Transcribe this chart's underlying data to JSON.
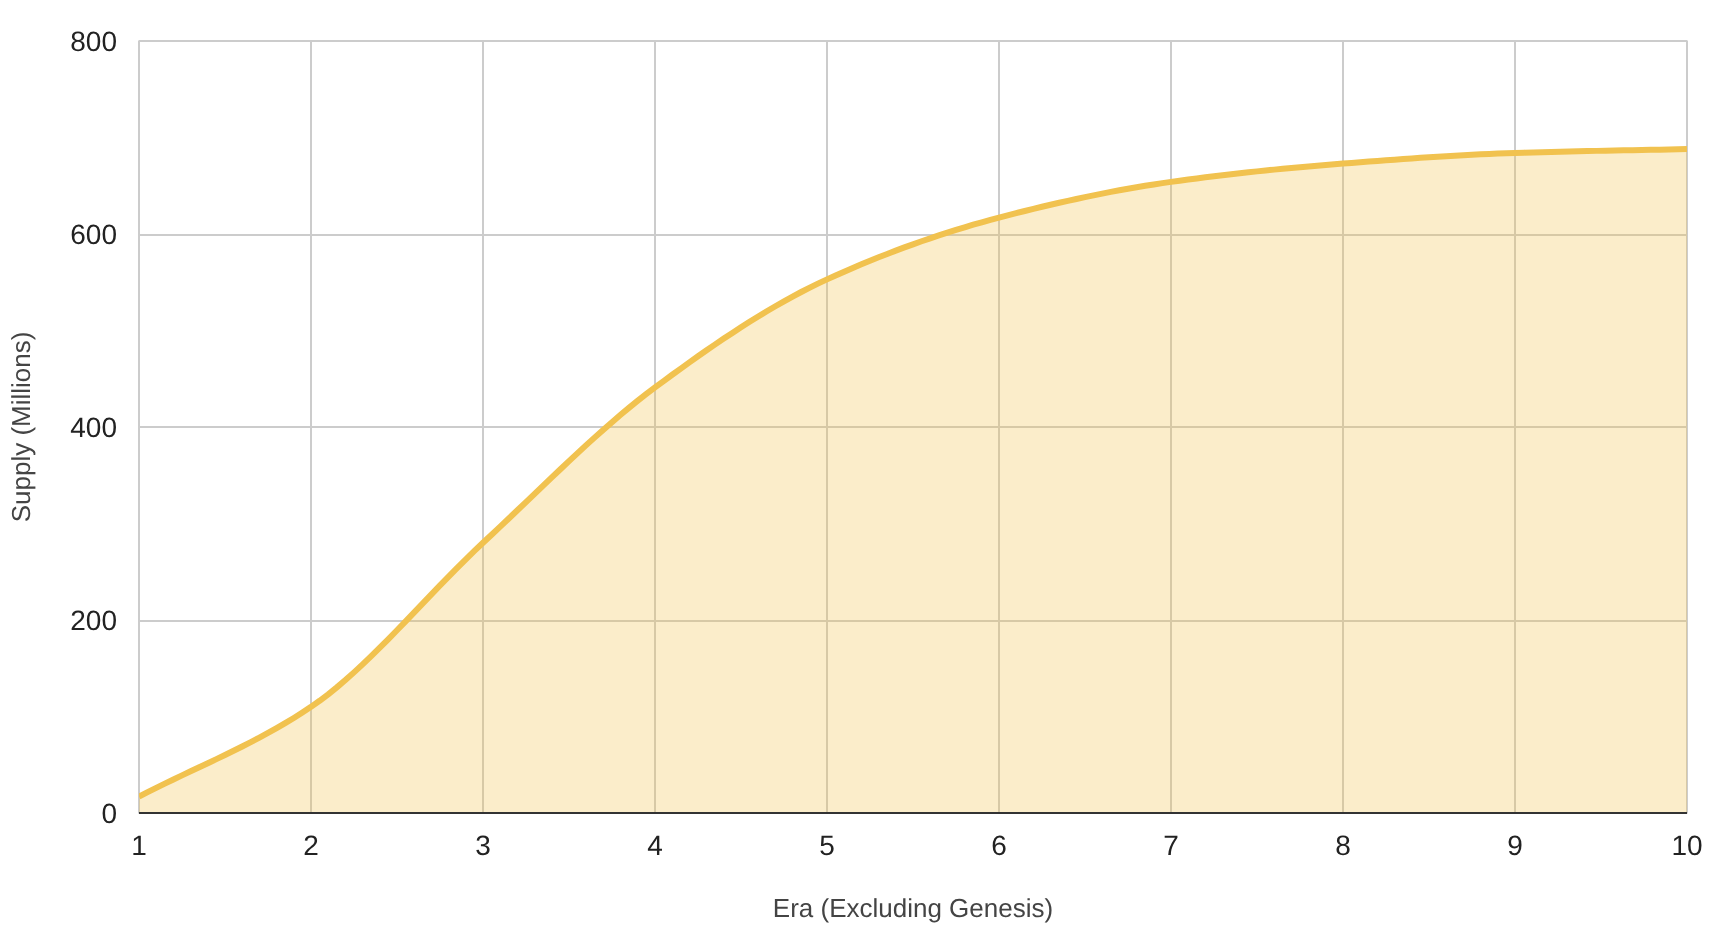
{
  "chart_data": {
    "type": "area",
    "xlabel": "Era (Excluding Genesis)",
    "ylabel": "Supply (Millions)",
    "x": [
      1,
      2,
      3,
      4,
      5,
      6,
      7,
      8,
      9,
      10
    ],
    "series": [
      {
        "color": "#f1c24f",
        "values": [
          17,
          110,
          280,
          441,
          553,
          617,
          654,
          673,
          684,
          688
        ]
      }
    ],
    "xlim": [
      1,
      10
    ],
    "ylim": [
      0,
      800
    ],
    "xticks": [
      1,
      2,
      3,
      4,
      5,
      6,
      7,
      8,
      9,
      10
    ],
    "yticks": [
      0,
      200,
      400,
      600,
      800
    ],
    "grid": true
  }
}
